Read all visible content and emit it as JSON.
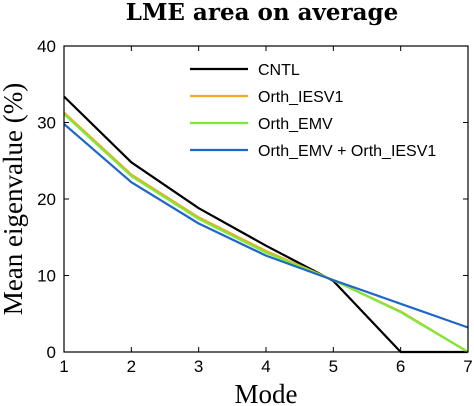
{
  "chart_data": {
    "type": "line",
    "title": "LME area on average",
    "xlabel": "Mode",
    "ylabel": "Mean eigenvalue (%)",
    "x": [
      1,
      2,
      3,
      4,
      5,
      6,
      7
    ],
    "xlim": [
      1,
      7
    ],
    "ylim": [
      0,
      40
    ],
    "xticks": [
      1,
      2,
      3,
      4,
      5,
      6,
      7
    ],
    "yticks": [
      0,
      10,
      20,
      30,
      40
    ],
    "grid": false,
    "legend_position": "top-right",
    "series": [
      {
        "name": "CNTL",
        "color": "#000000",
        "values": [
          33.4,
          24.8,
          18.8,
          13.9,
          9.3,
          0.0,
          0.0
        ]
      },
      {
        "name": "Orth_IESV1",
        "color": "#f5a623",
        "values": [
          31.3,
          23.2,
          17.6,
          13.2,
          9.4,
          5.3,
          0.0
        ]
      },
      {
        "name": "Orth_EMV",
        "color": "#7dea3a",
        "values": [
          31.1,
          23.0,
          17.4,
          13.0,
          9.4,
          5.2,
          0.0
        ]
      },
      {
        "name": "Orth_EMV + Orth_IESV1",
        "color": "#1f66c9",
        "values": [
          29.8,
          22.2,
          16.8,
          12.6,
          9.4,
          6.3,
          3.2
        ]
      }
    ]
  }
}
